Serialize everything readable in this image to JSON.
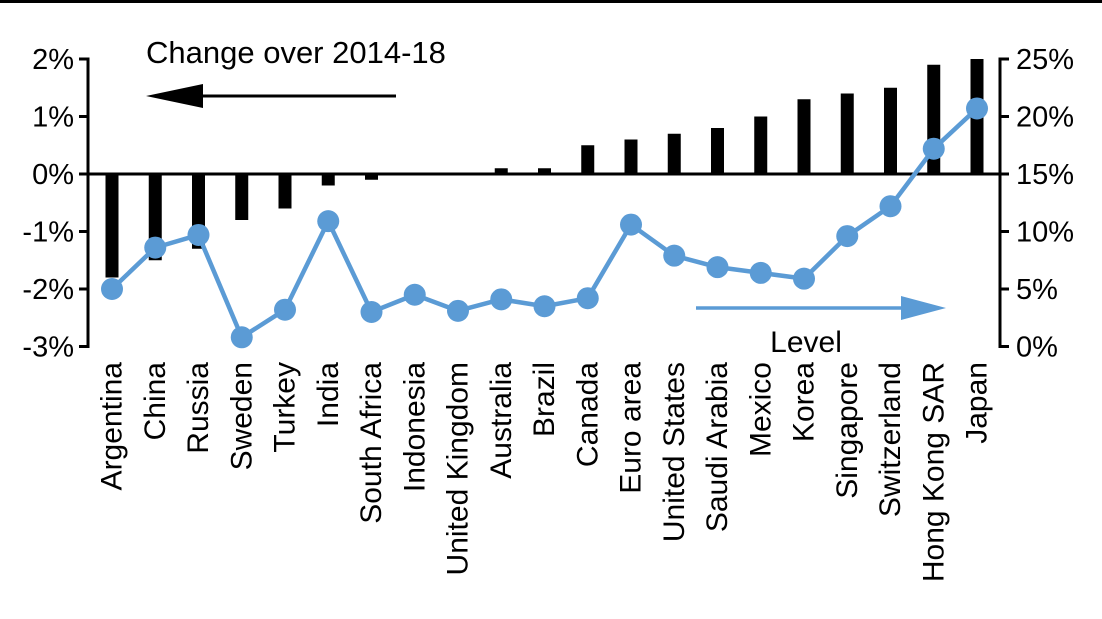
{
  "chart_data": {
    "type": "combo-bar-line",
    "grid": false,
    "legend_position": "in-plot annotations with arrows",
    "categories": [
      "Argentina",
      "China",
      "Russia",
      "Sweden",
      "Turkey",
      "India",
      "South Africa",
      "Indonesia",
      "United Kingdom",
      "Australia",
      "Brazil",
      "Canada",
      "Euro area",
      "United States",
      "Saudi Arabia",
      "Mexico",
      "Korea",
      "Singapore",
      "Switzerland",
      "Hong Kong SAR",
      "Japan"
    ],
    "series": [
      {
        "name": "Change over 2014-18",
        "type": "bar",
        "axis": "left",
        "color": "#000000",
        "values": [
          -1.8,
          -1.5,
          -1.3,
          -0.8,
          -0.6,
          -0.2,
          -0.1,
          0,
          0,
          0.1,
          0.1,
          0.5,
          0.6,
          0.7,
          0.8,
          1.0,
          1.3,
          1.4,
          1.5,
          1.9,
          2.0
        ]
      },
      {
        "name": "Level",
        "type": "line",
        "axis": "right",
        "color": "#5B9BD5",
        "values": [
          5.0,
          8.6,
          9.7,
          0.8,
          3.2,
          10.9,
          3.0,
          4.5,
          3.1,
          4.1,
          3.5,
          4.2,
          10.6,
          7.9,
          6.9,
          6.4,
          5.9,
          9.6,
          12.2,
          17.2,
          20.7
        ]
      }
    ],
    "left_axis": {
      "range": [
        -3,
        2
      ],
      "tick_values": [
        2,
        1,
        0,
        -1,
        -2,
        -3
      ],
      "tick_labels": [
        "2%",
        "1%",
        "0%",
        "-1%",
        "-2%",
        "-3%"
      ]
    },
    "right_axis": {
      "range": [
        0,
        25
      ],
      "tick_values": [
        25,
        20,
        15,
        10,
        5,
        0
      ],
      "tick_labels": [
        "25%",
        "20%",
        "15%",
        "10%",
        "5%",
        "0%"
      ]
    },
    "annotations": {
      "bar_arrow_label": "Change over 2014-18",
      "line_arrow_label": "Level",
      "bar_arrow_direction": "left",
      "line_arrow_direction": "right"
    },
    "colors": {
      "bar": "#000000",
      "line": "#5B9BD5",
      "axis": "#000000"
    }
  }
}
